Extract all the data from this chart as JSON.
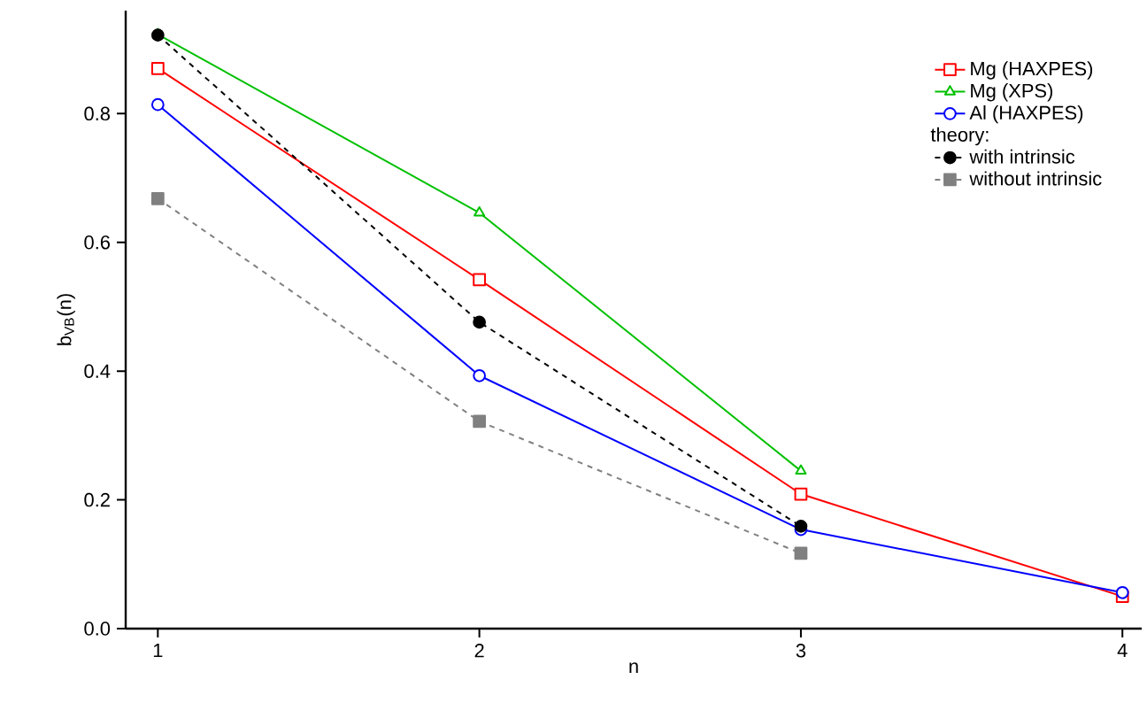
{
  "chart_data": {
    "type": "line",
    "xlabel": "n",
    "ylabel": "b$_{VB}$(n)",
    "xlim": [
      0.9,
      4.06
    ],
    "ylim": [
      0,
      0.96
    ],
    "xticks": [
      1,
      2,
      3,
      4
    ],
    "yticks": [
      {
        "value": 0,
        "label": "0.0"
      },
      0.2,
      0.4,
      0.6,
      0.8
    ],
    "legend": "top right",
    "grid": false,
    "annotations": [
      "theory:"
    ],
    "series": [
      {
        "name": "Mg (HAXPES)",
        "color": "#ff0000",
        "marker": "square",
        "line_style": "solid",
        "x": [
          1,
          2,
          3,
          4
        ],
        "values": [
          0.87,
          0.542,
          0.209,
          0.05
        ]
      },
      {
        "name": "Mg (XPS)",
        "color": "#00c000",
        "marker": "triangle",
        "line_style": "solid",
        "x": [
          1,
          2,
          3
        ],
        "values": [
          0.923,
          0.646,
          0.245
        ]
      },
      {
        "name": "Al (HAXPES)",
        "color": "#0000ff",
        "marker": "circle",
        "line_style": "solid",
        "x": [
          1,
          2,
          3,
          4
        ],
        "values": [
          0.814,
          0.393,
          0.154,
          0.056
        ]
      },
      {
        "name": "with intrinsic",
        "color": "#000000",
        "marker": "circle",
        "line_style": "dashed",
        "x": [
          1,
          2,
          3
        ],
        "values": [
          0.922,
          0.476,
          0.159
        ]
      },
      {
        "name": "without intrinsic",
        "color": "#808080",
        "marker": "square",
        "line_style": "dashed",
        "x": [
          1,
          2,
          3
        ],
        "values": [
          0.668,
          0.322,
          0.117
        ]
      }
    ]
  }
}
